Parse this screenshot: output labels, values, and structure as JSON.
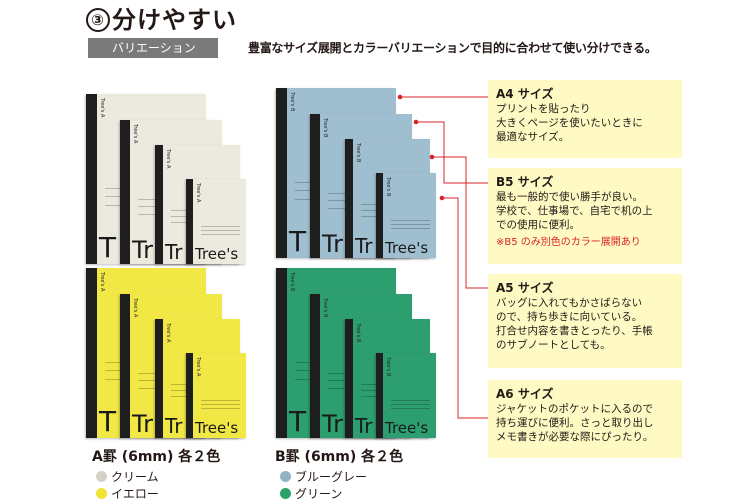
{
  "header": {
    "circled_number": "③",
    "title": "分けやすい",
    "tag": "バリエーション",
    "lead": "豊富なサイズ展開とカラーバリエーションで目的に合わせて使い分けできる。"
  },
  "notebook": {
    "brand": "Tree's",
    "spine_label_a": "Tree's A",
    "spine_label_b": "Tree's B",
    "big_t": "T",
    "big_tr": "Tr"
  },
  "groups": [
    {
      "caption": "A罫 (6mm) 各２色",
      "colors": [
        {
          "label": "クリーム",
          "hex": "#d6d1c6"
        },
        {
          "label": "イエロー",
          "hex": "#f0e532"
        }
      ]
    },
    {
      "caption": "B罫 (6mm) 各２色",
      "colors": [
        {
          "label": "ブルーグレー",
          "hex": "#90b4c6"
        },
        {
          "label": "グリーン",
          "hex": "#2aa36b"
        }
      ]
    }
  ],
  "sizes": [
    {
      "name": "A4 サイズ",
      "lines": [
        "プリントを貼ったり",
        "大きくページを使いたいときに",
        "最適なサイズ。"
      ]
    },
    {
      "name": "B5 サイズ",
      "lines": [
        "最も一般的で使い勝手が良い。",
        "学校で、仕事場で、自宅で机の上",
        "での使用に便利。"
      ],
      "note": "※B5 のみ別色のカラー展開あり"
    },
    {
      "name": "A5 サイズ",
      "lines": [
        "バッグに入れてもかさばらない",
        "ので、持ち歩きに向いている。",
        "打合せ内容を書きとったり、手帳",
        "のサブノートとしても。"
      ]
    },
    {
      "name": "A6 サイズ",
      "lines": [
        "ジャケットのポケットに入るので",
        "持ち運びに便利。さっと取り出し",
        "メモ書きが必要な際にぴったり。"
      ]
    }
  ],
  "colors": {
    "cream": "#ece9df",
    "yellow": "#f1e845",
    "bluegray": "#9fbfd0",
    "green": "#2c9e70",
    "leader": "#d8232a",
    "box_bg": "#fff9c4"
  }
}
